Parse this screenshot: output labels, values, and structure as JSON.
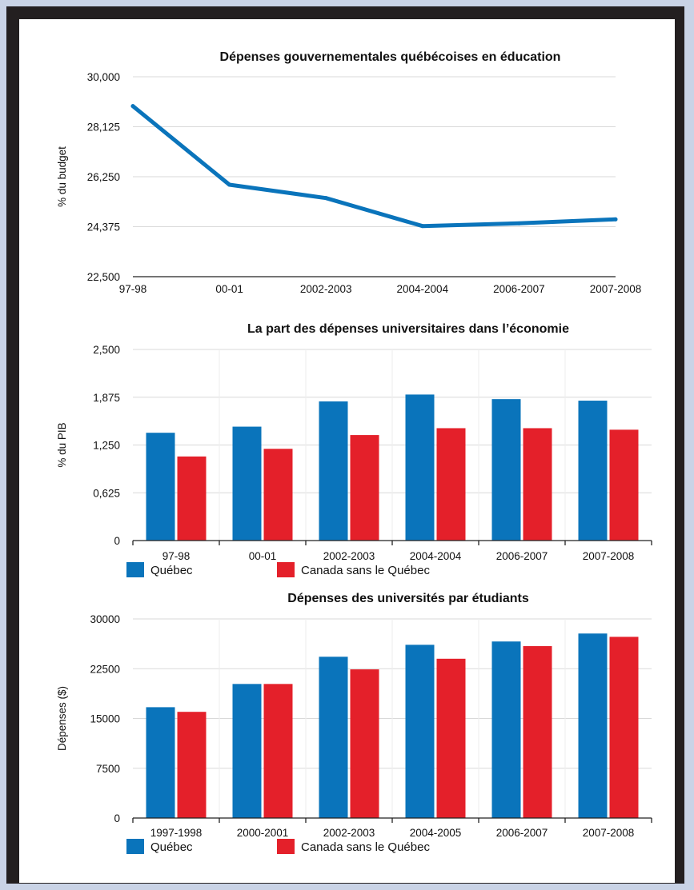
{
  "colors": {
    "quebec": "#0a74bb",
    "canada": "#e4202a",
    "line": "#0a74bb"
  },
  "chart_data": [
    {
      "type": "line",
      "title": "Dépenses gouvernementales québécoises en éducation",
      "ylabel": "% du budget",
      "xlabel": "",
      "categories": [
        "97-98",
        "00-01",
        "2002-2003",
        "2004-2004",
        "2006-2007",
        "2007-2008"
      ],
      "yticks": [
        "22,500",
        "24,375",
        "26,250",
        "28,125",
        "30,000"
      ],
      "ylim": [
        22.5,
        30
      ],
      "grid": true,
      "series": [
        {
          "values": [
            28.9,
            25.95,
            25.45,
            24.4,
            24.5,
            24.65
          ]
        }
      ]
    },
    {
      "type": "bar",
      "title": "La part des dépenses universitaires dans l’économie",
      "ylabel": "% du PIB",
      "xlabel": "",
      "categories": [
        "97-98",
        "00-01",
        "2002-2003",
        "2004-2004",
        "2006-2007",
        "2007-2008"
      ],
      "yticks": [
        "0",
        "0,625",
        "1,250",
        "1,875",
        "2,500"
      ],
      "ylim": [
        0,
        2.5
      ],
      "grid": true,
      "legend_position": "bottom",
      "series": [
        {
          "name": "Québec",
          "values": [
            1.41,
            1.49,
            1.82,
            1.91,
            1.85,
            1.83
          ]
        },
        {
          "name": "Canada sans le Québec",
          "values": [
            1.1,
            1.2,
            1.38,
            1.47,
            1.47,
            1.45
          ]
        }
      ]
    },
    {
      "type": "bar",
      "title": "Dépenses des universités par étudiants",
      "ylabel": "Dépenses ($)",
      "xlabel": "",
      "categories": [
        "1997-1998",
        "2000-2001",
        "2002-2003",
        "2004-2005",
        "2006-2007",
        "2007-2008"
      ],
      "yticks": [
        "0",
        "7500",
        "15000",
        "22500",
        "30000"
      ],
      "ylim": [
        0,
        30000
      ],
      "grid": true,
      "legend_position": "bottom",
      "series": [
        {
          "name": "Québec",
          "values": [
            16700,
            20200,
            24300,
            26100,
            26600,
            27800
          ]
        },
        {
          "name": "Canada sans le Québec",
          "values": [
            16000,
            20200,
            22400,
            24000,
            25900,
            27300
          ]
        }
      ]
    }
  ]
}
